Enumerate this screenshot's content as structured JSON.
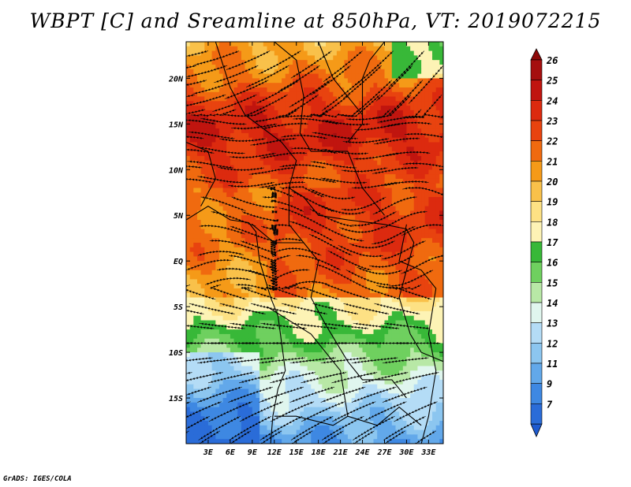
{
  "title": "WBPT [C] and Sreamline at 850hPa, VT: 2019072215",
  "footer": "GrADS: IGES/COLA",
  "map": {
    "lon_range": [
      0,
      35
    ],
    "lat_range": [
      -20,
      24
    ],
    "lon_ticks": [
      {
        "value": 3,
        "label": "3E"
      },
      {
        "value": 6,
        "label": "6E"
      },
      {
        "value": 9,
        "label": "9E"
      },
      {
        "value": 12,
        "label": "12E"
      },
      {
        "value": 15,
        "label": "15E"
      },
      {
        "value": 18,
        "label": "18E"
      },
      {
        "value": 21,
        "label": "21E"
      },
      {
        "value": 24,
        "label": "24E"
      },
      {
        "value": 27,
        "label": "27E"
      },
      {
        "value": 30,
        "label": "30E"
      },
      {
        "value": 33,
        "label": "33E"
      }
    ],
    "lat_ticks": [
      {
        "value": 20,
        "label": "20N"
      },
      {
        "value": 15,
        "label": "15N"
      },
      {
        "value": 10,
        "label": "10N"
      },
      {
        "value": 5,
        "label": "5N"
      },
      {
        "value": 0,
        "label": "EQ"
      },
      {
        "value": -5,
        "label": "5S"
      },
      {
        "value": -10,
        "label": "10S"
      },
      {
        "value": -15,
        "label": "15S"
      }
    ]
  },
  "colorbar": {
    "levels": [
      {
        "label": "26",
        "color": "#a50f0f"
      },
      {
        "label": "25",
        "color": "#c0150f"
      },
      {
        "label": "24",
        "color": "#dc2a0f"
      },
      {
        "label": "23",
        "color": "#e8430f"
      },
      {
        "label": "22",
        "color": "#f06a0f"
      },
      {
        "label": "21",
        "color": "#f59a18"
      },
      {
        "label": "20",
        "color": "#f9c14a"
      },
      {
        "label": "19",
        "color": "#fde184"
      },
      {
        "label": "18",
        "color": "#fdf3b5"
      },
      {
        "label": "17",
        "color": "#38b838"
      },
      {
        "label": "16",
        "color": "#6fd05f"
      },
      {
        "label": "15",
        "color": "#b8e8a6"
      },
      {
        "label": "14",
        "color": "#e0f6ee"
      },
      {
        "label": "13",
        "color": "#b4dcf6"
      },
      {
        "label": "12",
        "color": "#8cc6f0"
      },
      {
        "label": "11",
        "color": "#62a8ea"
      },
      {
        "label": "9",
        "color": "#3e88e2"
      },
      {
        "label": "7",
        "color": "#2a6cd8"
      }
    ],
    "top_arrow_color": "#8e0a0a",
    "bottom_arrow_color": "#1e5bd0"
  }
}
